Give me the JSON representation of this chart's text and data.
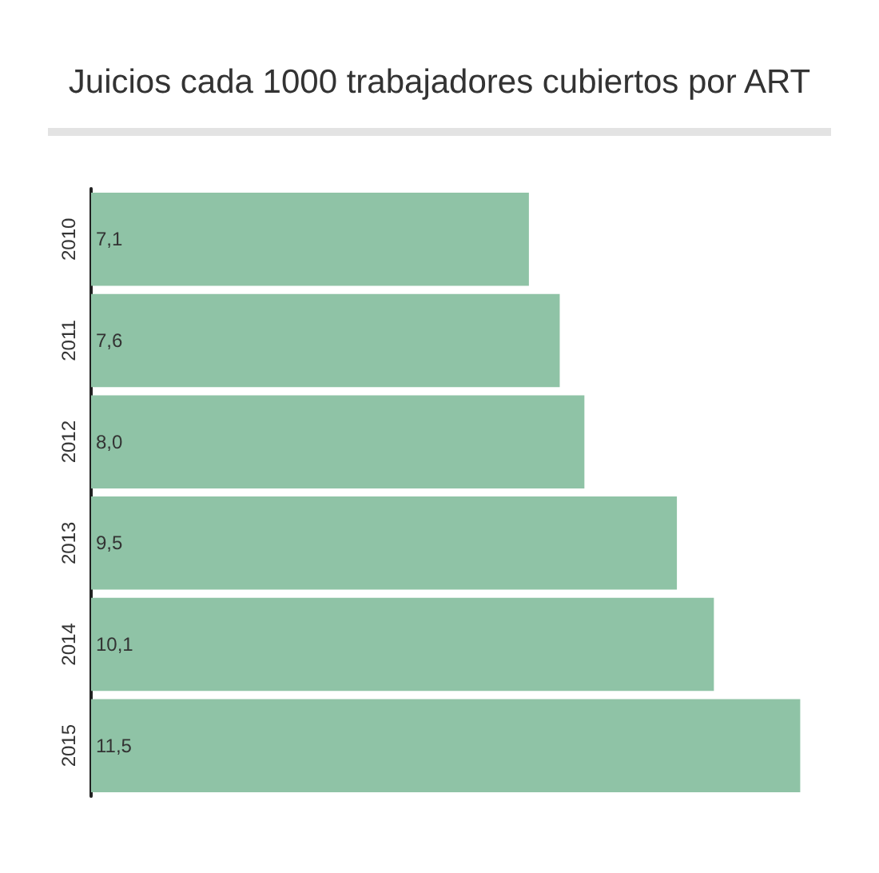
{
  "chart_data": {
    "type": "bar",
    "orientation": "horizontal",
    "title": "Juicios cada 1000 trabajadores cubiertos por ART",
    "categories": [
      "2010",
      "2011",
      "2012",
      "2013",
      "2014",
      "2015"
    ],
    "values": [
      7.1,
      7.6,
      8.0,
      9.5,
      10.1,
      11.5
    ],
    "value_labels": [
      "7,1",
      "7,6",
      "8,0",
      "9,5",
      "10,1",
      "11,5"
    ],
    "color": "#8fc3a6"
  }
}
